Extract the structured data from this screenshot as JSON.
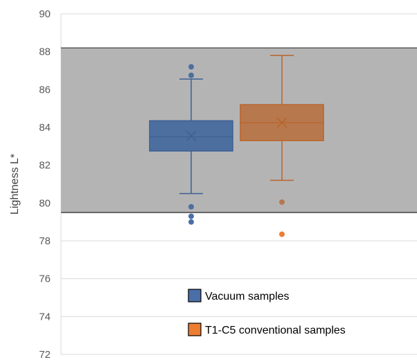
{
  "chart_data": {
    "type": "box",
    "title": "",
    "xlabel": "",
    "ylabel": "Lightness L*",
    "ylim": [
      72,
      90
    ],
    "yticks": [
      "72",
      "74",
      "76",
      "78",
      "80",
      "82",
      "84",
      "86",
      "88",
      "90"
    ],
    "grid": true,
    "legend_position": "bottom-right",
    "reference_band": {
      "y_min": 79.5,
      "y_max": 88.2,
      "color": "#b4b4b4"
    },
    "series": [
      {
        "name": "Vacuum samples",
        "color": "#4a6fa8",
        "min": 80.5,
        "q1": 82.75,
        "median": 83.5,
        "mean": 83.55,
        "q3": 84.35,
        "max": 86.55,
        "outliers": [
          87.2,
          86.75,
          79.8,
          79.3,
          79.0
        ]
      },
      {
        "name": "T1-C5 conventional samples",
        "color": "#ed7d31",
        "min": 81.2,
        "q1": 83.3,
        "median": 84.25,
        "mean": 84.25,
        "q3": 85.2,
        "max": 87.8,
        "outliers": [
          80.05,
          78.35
        ]
      }
    ]
  }
}
